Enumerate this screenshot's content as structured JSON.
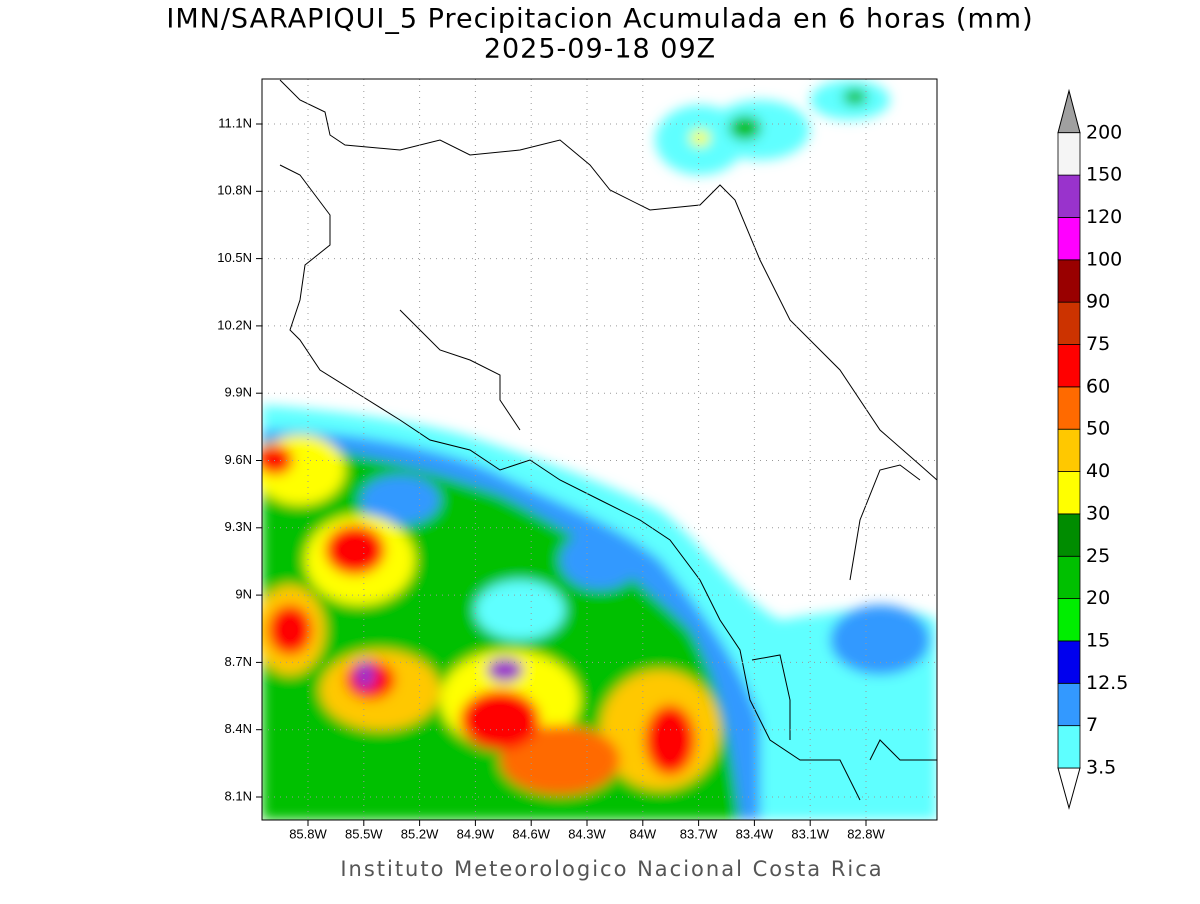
{
  "title": "IMN/SARAPIQUI_5 Precipitacion Acumulada en 6 horas (mm)",
  "subtitle": "2025-09-18 09Z",
  "footer": "Instituto Meteorologico Nacional Costa Rica",
  "map": {
    "lon_ticks": [
      "85.8W",
      "85.5W",
      "85.2W",
      "84.9W",
      "84.6W",
      "84.3W",
      "84W",
      "83.7W",
      "83.4W",
      "83.1W",
      "82.8W"
    ],
    "lat_ticks": [
      "11.1N",
      "10.8N",
      "10.5N",
      "10.2N",
      "9.9N",
      "9.6N",
      "9.3N",
      "9N",
      "8.7N",
      "8.4N",
      "8.1N"
    ]
  },
  "colorbar": {
    "levels": [
      3.5,
      7,
      12.5,
      15,
      20,
      25,
      30,
      40,
      50,
      60,
      75,
      90,
      100,
      120,
      150,
      200
    ],
    "colors": [
      "#5effff",
      "#3399ff",
      "#0000ee",
      "#00ee00",
      "#00c000",
      "#008c00",
      "#ffff00",
      "#ffc800",
      "#ff6a00",
      "#ff0000",
      "#cc3300",
      "#990000",
      "#ff00ff",
      "#9933cc",
      "#f5f5f5"
    ],
    "below_color": "#ffffff",
    "above_color": "#a0a0a0"
  }
}
